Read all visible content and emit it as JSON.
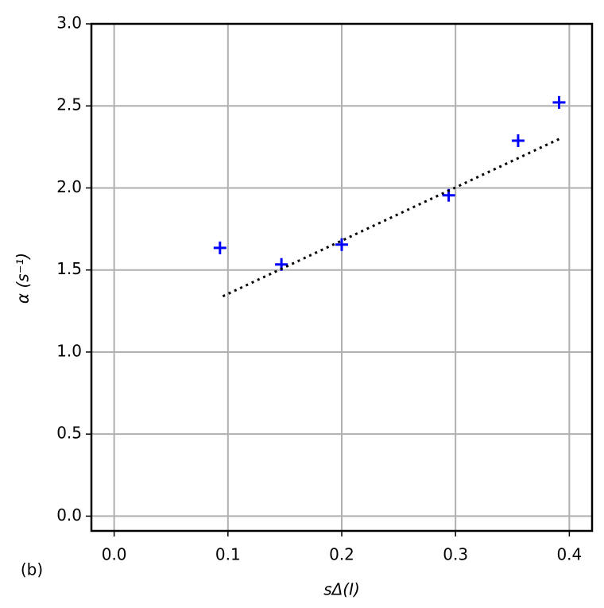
{
  "chart_data": {
    "type": "scatter",
    "xlabel": "sΔ(I)",
    "ylabel": "α (s⁻¹)",
    "annotation": "(b)",
    "xlim": [
      -0.02,
      0.42
    ],
    "ylim": [
      -0.09,
      3.0
    ],
    "xticks": [
      {
        "value": 0,
        "label": "0.0"
      },
      {
        "value": 0.1,
        "label": "0.1"
      },
      {
        "value": 0.2,
        "label": "0.2"
      },
      {
        "value": 0.3,
        "label": "0.3"
      },
      {
        "value": 0.4,
        "label": "0.4"
      }
    ],
    "yticks": [
      {
        "value": 0,
        "label": "0.0"
      },
      {
        "value": 0.5,
        "label": "0.5"
      },
      {
        "value": 1,
        "label": "1.0"
      },
      {
        "value": 1.5,
        "label": "1.5"
      },
      {
        "value": 2,
        "label": "2.0"
      },
      {
        "value": 2.5,
        "label": "2.5"
      },
      {
        "value": 3,
        "label": "3.0"
      }
    ],
    "grid": true,
    "series": [
      {
        "color": "#0000ff",
        "marker": "+",
        "x": [
          0.093,
          0.147,
          0.2,
          0.294,
          0.355,
          0.391
        ],
        "values": [
          1.635,
          1.534,
          1.655,
          1.955,
          2.288,
          2.521
        ]
      },
      {
        "color": "#000000",
        "style": "dotted",
        "x": [
          0.0955,
          0.391
        ],
        "values": [
          1.34,
          2.298
        ]
      }
    ]
  }
}
